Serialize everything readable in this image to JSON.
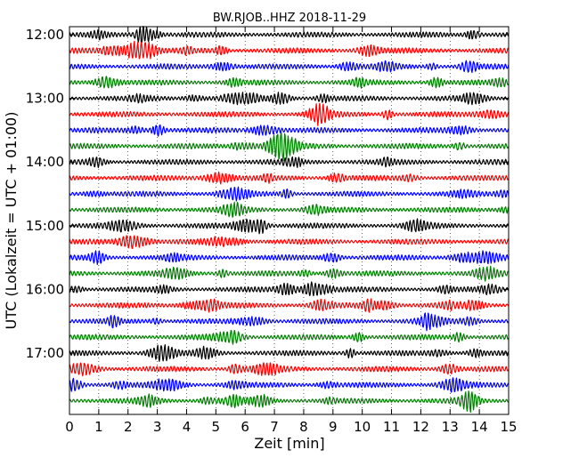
{
  "chart_data": {
    "type": "line",
    "title": "BW.RJOB..HHZ 2018-11-29",
    "xlabel": "Zeit  [min]",
    "ylabel": "UTC (Lokalzeit = UTC + 01:00)",
    "xlim": [
      0,
      15
    ],
    "x_ticks": [
      "0",
      "1",
      "2",
      "3",
      "4",
      "5",
      "6",
      "7",
      "8",
      "9",
      "10",
      "11",
      "12",
      "13",
      "14",
      "15"
    ],
    "y_ticks": [
      "12:00",
      "13:00",
      "14:00",
      "15:00",
      "16:00",
      "17:00"
    ],
    "grid": "vertical dotted",
    "color_cycle": [
      "#000000",
      "#ff0000",
      "#0000ff",
      "#008000"
    ],
    "trace_start_times": [
      "12:00",
      "12:15",
      "12:30",
      "12:45",
      "13:00",
      "13:15",
      "13:30",
      "13:45",
      "14:00",
      "14:15",
      "14:30",
      "14:45",
      "15:00",
      "15:15",
      "15:30",
      "15:45",
      "16:00",
      "16:15",
      "16:30",
      "16:45",
      "17:00",
      "17:15",
      "17:30",
      "17:45"
    ],
    "trace_duration_min": 15
  }
}
